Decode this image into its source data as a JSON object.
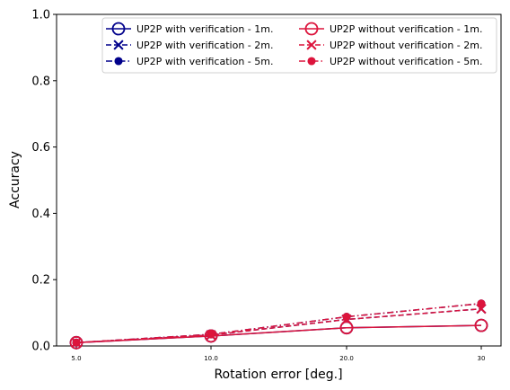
{
  "chart_data": {
    "type": "line",
    "xlabel": "Rotation error [deg.]",
    "ylabel": "Accuracy",
    "ylim": [
      0,
      1.0
    ],
    "x_tick_labels": [
      "5.0",
      "10.0",
      "20.0",
      "30"
    ],
    "y_tick_labels": [
      "0.0",
      "0.2",
      "0.4",
      "0.6",
      "0.8",
      "1.0"
    ],
    "y_ticks": [
      0,
      0.2,
      0.4,
      0.6,
      0.8,
      1.0
    ],
    "grid": false,
    "legend_position": "top-right",
    "legend_columns": 2,
    "series": [
      {
        "name": "UP2P with verification - 1m.",
        "values": [
          0.01,
          0.03,
          0.055,
          0.062
        ],
        "color": "#00008b",
        "marker": "open-circle",
        "linestyle": "solid"
      },
      {
        "name": "UP2P with verification - 2m.",
        "values": [
          0.01,
          0.033,
          0.08,
          0.112
        ],
        "color": "#00008b",
        "marker": "x",
        "linestyle": "dashed"
      },
      {
        "name": "UP2P with verification - 5m.",
        "values": [
          0.01,
          0.035,
          0.088,
          0.128
        ],
        "color": "#00008b",
        "marker": "filled-circle",
        "linestyle": "dashdot"
      },
      {
        "name": "UP2P without verification - 1m.",
        "values": [
          0.01,
          0.03,
          0.055,
          0.062
        ],
        "color": "#dc143c",
        "marker": "open-circle",
        "linestyle": "solid"
      },
      {
        "name": "UP2P without verification - 2m.",
        "values": [
          0.01,
          0.033,
          0.08,
          0.112
        ],
        "color": "#dc143c",
        "marker": "x",
        "linestyle": "dashed"
      },
      {
        "name": "UP2P without verification - 5m.",
        "values": [
          0.01,
          0.035,
          0.088,
          0.128
        ],
        "color": "#dc143c",
        "marker": "filled-circle",
        "linestyle": "dashdot"
      }
    ]
  }
}
